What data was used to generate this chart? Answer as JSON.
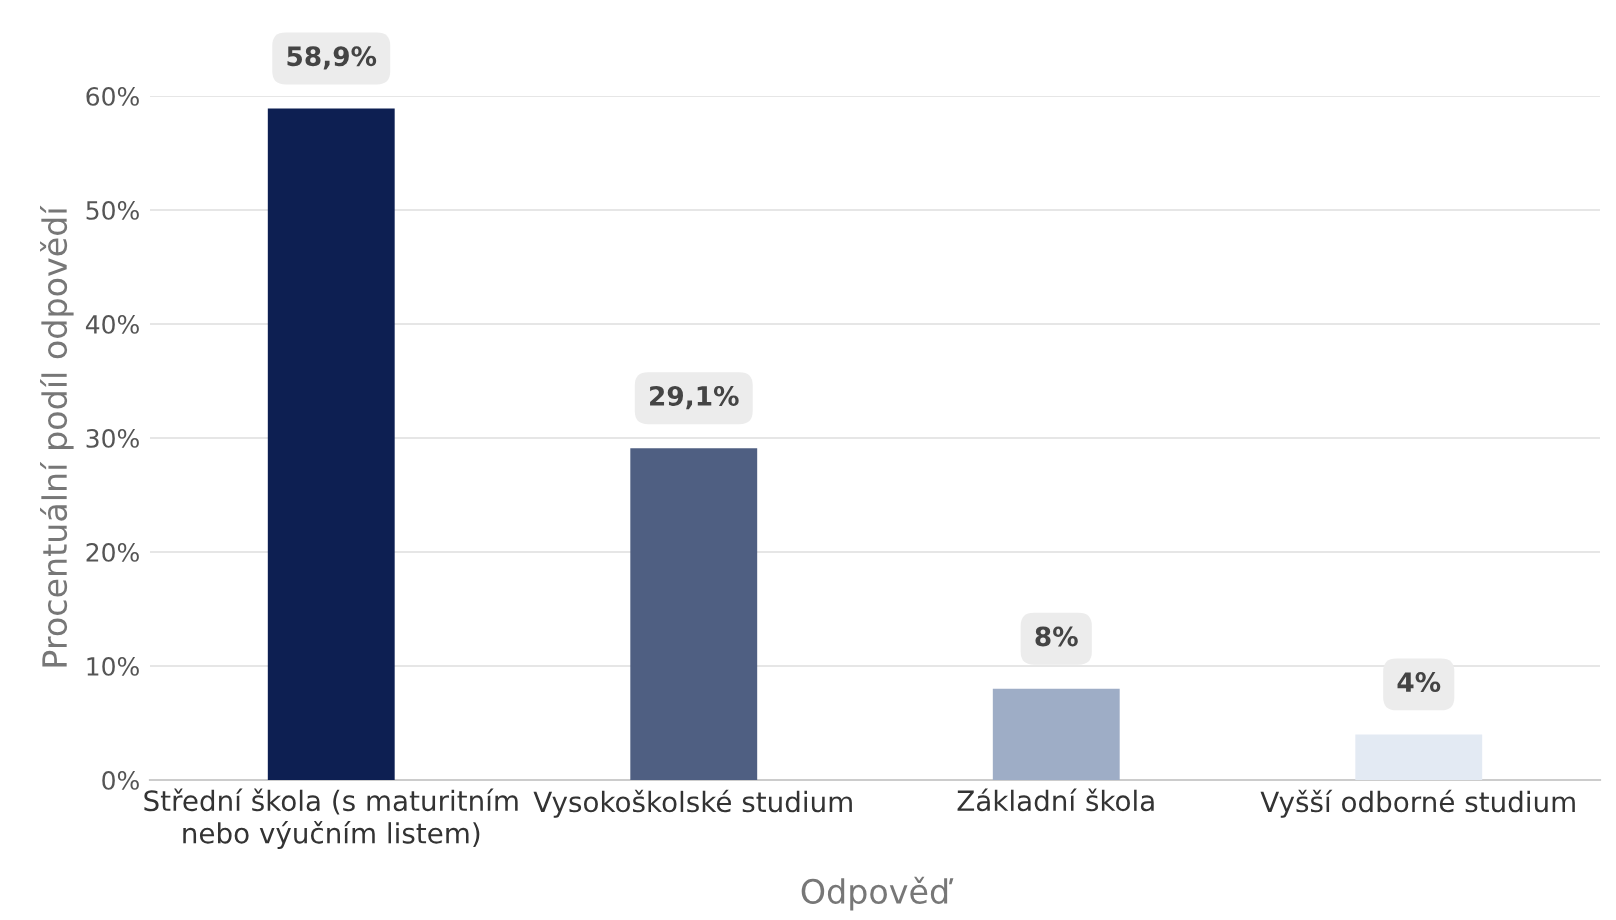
{
  "chart_data": {
    "type": "bar",
    "xlabel": "Odpověď",
    "ylabel": "Procentuální podíl odpovědí",
    "categories": [
      "Střední škola (s maturitním\nnebo výučním listem)",
      "Vysokoškolské studium",
      "Základní škola",
      "Vyšší odborné studium"
    ],
    "values": [
      58.9,
      29.1,
      8,
      4
    ],
    "colors": [
      "#0d1f52",
      "#4f5f82",
      "#9eadc6",
      "#e3eaf3"
    ],
    "value_labels": [
      "58,9%",
      "29,1%",
      "8%",
      "4%"
    ],
    "ylim": [
      0,
      60
    ],
    "yticks": [
      {
        "value": 0,
        "label": "0%"
      },
      {
        "value": 10,
        "label": "10%"
      },
      {
        "value": 20,
        "label": "20%"
      },
      {
        "value": 30,
        "label": "30%"
      },
      {
        "value": 40,
        "label": "40%"
      },
      {
        "value": 50,
        "label": "50%"
      },
      {
        "value": 60,
        "label": "60%"
      }
    ],
    "grid": "y"
  }
}
